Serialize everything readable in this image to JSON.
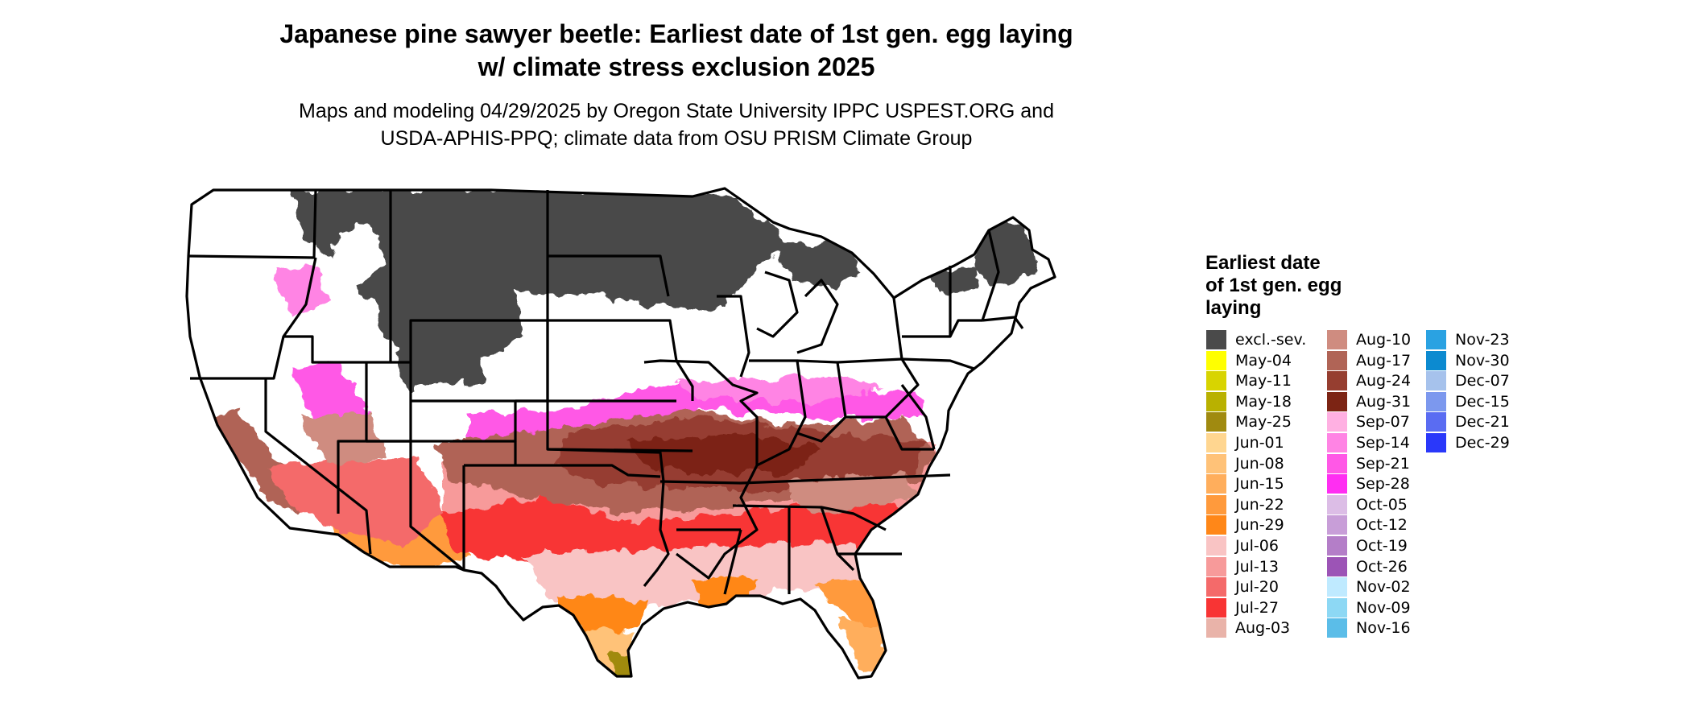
{
  "title_line1": "Japanese pine sawyer beetle: Earliest date of 1st gen. egg laying",
  "title_line2": "w/ climate stress exclusion 2025",
  "subtitle_line1": "Maps and modeling 04/29/2025 by Oregon State University IPPC USPEST.ORG and",
  "subtitle_line2": "USDA-APHIS-PPQ; climate data from OSU PRISM Climate Group",
  "legend": {
    "title_line1": "Earliest date",
    "title_line2": "of 1st gen. egg",
    "title_line3": "laying",
    "columns": [
      [
        {
          "label": "excl.-sev.",
          "color": "#4a4a4a"
        },
        {
          "label": "May-04",
          "color": "#ffff00"
        },
        {
          "label": "May-11",
          "color": "#d8d400"
        },
        {
          "label": "May-18",
          "color": "#b9b100"
        },
        {
          "label": "May-25",
          "color": "#a08a10"
        },
        {
          "label": "Jun-01",
          "color": "#ffd690"
        },
        {
          "label": "Jun-08",
          "color": "#ffc278"
        },
        {
          "label": "Jun-15",
          "color": "#ffae5c"
        },
        {
          "label": "Jun-22",
          "color": "#ff9a3c"
        },
        {
          "label": "Jun-29",
          "color": "#ff8718"
        },
        {
          "label": "Jul-06",
          "color": "#f9c4c4"
        },
        {
          "label": "Jul-13",
          "color": "#f79a9a"
        },
        {
          "label": "Jul-20",
          "color": "#f46a6a"
        },
        {
          "label": "Jul-27",
          "color": "#f83434"
        },
        {
          "label": "Aug-03",
          "color": "#e9b3a9"
        }
      ],
      [
        {
          "label": "Aug-10",
          "color": "#cf8c80"
        },
        {
          "label": "Aug-17",
          "color": "#b06456"
        },
        {
          "label": "Aug-24",
          "color": "#963e30"
        },
        {
          "label": "Aug-31",
          "color": "#7c2414"
        },
        {
          "label": "Sep-07",
          "color": "#ffb0e2"
        },
        {
          "label": "Sep-14",
          "color": "#ff84e4"
        },
        {
          "label": "Sep-21",
          "color": "#ff58e6"
        },
        {
          "label": "Sep-28",
          "color": "#ff2ef2"
        },
        {
          "label": "Oct-05",
          "color": "#dcbde6"
        },
        {
          "label": "Oct-12",
          "color": "#c89ed8"
        },
        {
          "label": "Oct-19",
          "color": "#b47ec8"
        },
        {
          "label": "Oct-26",
          "color": "#9c54b6"
        },
        {
          "label": "Nov-02",
          "color": "#bfeaff"
        },
        {
          "label": "Nov-09",
          "color": "#8dd8f4"
        },
        {
          "label": "Nov-16",
          "color": "#5bbde8"
        }
      ],
      [
        {
          "label": "Nov-23",
          "color": "#2aa2e2"
        },
        {
          "label": "Nov-30",
          "color": "#0c8ad0"
        },
        {
          "label": "Dec-07",
          "color": "#a6c2ec"
        },
        {
          "label": "Dec-15",
          "color": "#7c98ee"
        },
        {
          "label": "Dec-21",
          "color": "#5a6cf2"
        },
        {
          "label": "Dec-29",
          "color": "#2a38fa"
        }
      ]
    ]
  }
}
